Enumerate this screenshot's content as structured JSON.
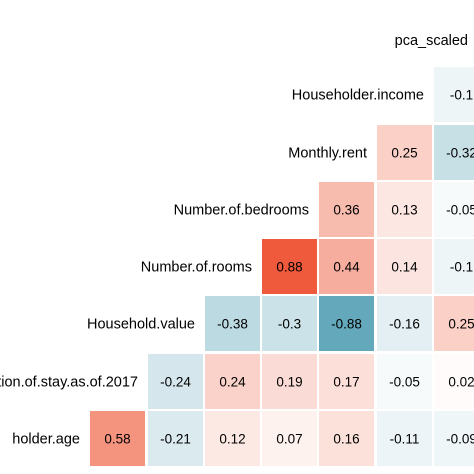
{
  "chart_data": {
    "type": "heatmap",
    "title": "",
    "top_label": "pca_scaled",
    "row_labels": [
      "Householder.income",
      "Monthly.rent",
      "Number.of.bedrooms",
      "Number.of.rooms",
      "Household.value",
      "ation.of.stay.as.of.2017",
      "holder.age"
    ],
    "cell_labels": [
      [
        "-0.1"
      ],
      [
        "0.25",
        "-0.32"
      ],
      [
        "0.36",
        "0.13",
        "-0.05"
      ],
      [
        "0.88",
        "0.44",
        "0.14",
        "-0.1"
      ],
      [
        "-0.38",
        "-0.3",
        "-0.88",
        "-0.16",
        "0.25"
      ],
      [
        "-0.24",
        "0.24",
        "0.19",
        "0.17",
        "-0.05",
        "0.02"
      ],
      [
        "0.58",
        "-0.21",
        "0.12",
        "0.07",
        "0.16",
        "-0.11",
        "-0.09"
      ]
    ],
    "values": [
      [
        -0.1
      ],
      [
        0.25,
        -0.32
      ],
      [
        0.36,
        0.13,
        -0.05
      ],
      [
        0.88,
        0.44,
        0.14,
        -0.1
      ],
      [
        -0.38,
        -0.3,
        -0.88,
        -0.16,
        0.25
      ],
      [
        -0.24,
        0.24,
        0.19,
        0.17,
        -0.05,
        0.02
      ],
      [
        0.58,
        -0.21,
        0.12,
        0.07,
        0.16,
        -0.11,
        -0.09
      ]
    ],
    "color_scale": {
      "negative": "#4f9db2",
      "zero": "#ffffff",
      "positive": "#ec4420"
    },
    "grid": false,
    "legend": "none"
  }
}
